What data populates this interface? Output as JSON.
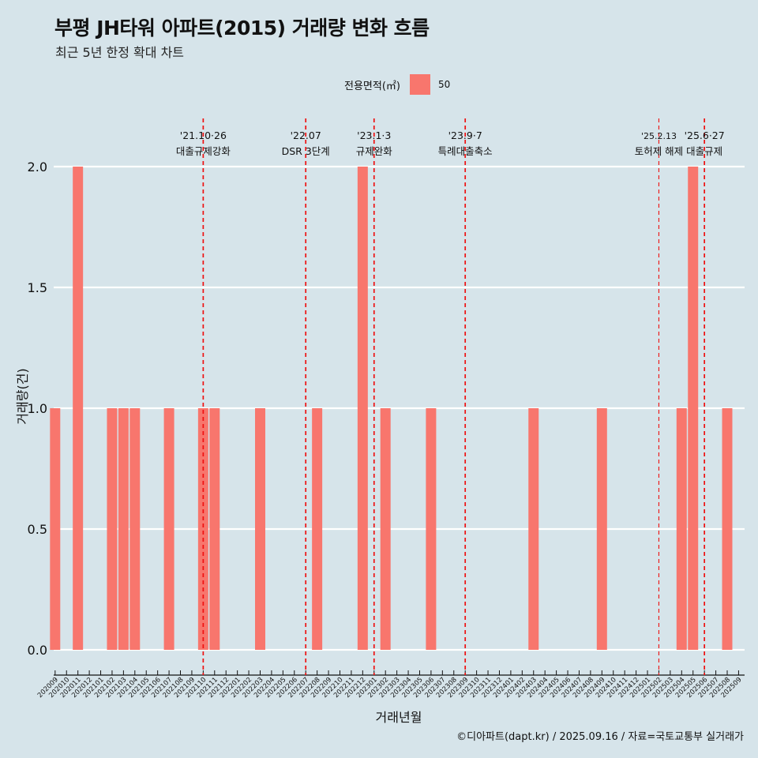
{
  "title": "부평 JH타워 아파트(2015) 거래량 변화 흐름",
  "subtitle": "최근 5년 한정 확대 차트",
  "legend": {
    "title": "전용면적(㎡)",
    "items": [
      "50"
    ]
  },
  "footer": "©디아파트(dapt.kr) / 2025.09.16 / 자료=국토교통부 실거래가",
  "colors": {
    "background": "#d6e4ea",
    "bar": "#f8766d",
    "event_line": "#ee1111",
    "grid": "#ffffff"
  },
  "chart_data": {
    "type": "bar",
    "xlabel": "거래년월",
    "ylabel": "거래량(건)",
    "ylim": [
      0,
      2.1
    ],
    "yticks": [
      "0.0",
      "0.5",
      "1.0",
      "1.5",
      "2.0"
    ],
    "ytick_values": [
      0,
      0.5,
      1.0,
      1.5,
      2.0
    ],
    "grid": "horizontal",
    "legend_position": "top",
    "categories": [
      "202009",
      "202010",
      "202011",
      "202012",
      "202101",
      "202102",
      "202103",
      "202104",
      "202105",
      "202106",
      "202107",
      "202108",
      "202109",
      "202110",
      "202111",
      "202112",
      "202201",
      "202202",
      "202203",
      "202204",
      "202205",
      "202206",
      "202207",
      "202208",
      "202209",
      "202210",
      "202211",
      "202212",
      "202301",
      "202302",
      "202303",
      "202304",
      "202305",
      "202306",
      "202307",
      "202308",
      "202309",
      "202310",
      "202311",
      "202312",
      "202401",
      "202402",
      "202403",
      "202404",
      "202405",
      "202406",
      "202407",
      "202408",
      "202409",
      "202410",
      "202411",
      "202412",
      "202501",
      "202502",
      "202503",
      "202504",
      "202505",
      "202506",
      "202507",
      "202508",
      "202509"
    ],
    "series": [
      {
        "name": "50",
        "values": [
          1,
          0,
          2,
          0,
          0,
          1,
          1,
          1,
          0,
          0,
          1,
          0,
          0,
          1,
          1,
          0,
          0,
          0,
          1,
          0,
          0,
          0,
          0,
          1,
          0,
          0,
          0,
          2,
          0,
          1,
          0,
          0,
          0,
          1,
          0,
          0,
          0,
          0,
          0,
          0,
          0,
          0,
          1,
          0,
          0,
          0,
          0,
          0,
          1,
          0,
          0,
          0,
          0,
          0,
          0,
          1,
          2,
          0,
          0,
          1,
          0
        ]
      }
    ],
    "events": [
      {
        "date": "'21.10·26",
        "label": "대출규제강화",
        "x": 13.0
      },
      {
        "date": "'22.07",
        "label": "DSR 3단계",
        "x": 22.0
      },
      {
        "date": "'23.1·3",
        "label": "규제완화",
        "x": 28.0
      },
      {
        "date": "'23.9·7",
        "label": "특례대출축소",
        "x": 36.0
      },
      {
        "date": "'25.2.13",
        "label": "토허제 해제",
        "x": 53.0
      },
      {
        "date": "'25.6·27",
        "label": "대출규제",
        "x": 57.0
      }
    ]
  }
}
